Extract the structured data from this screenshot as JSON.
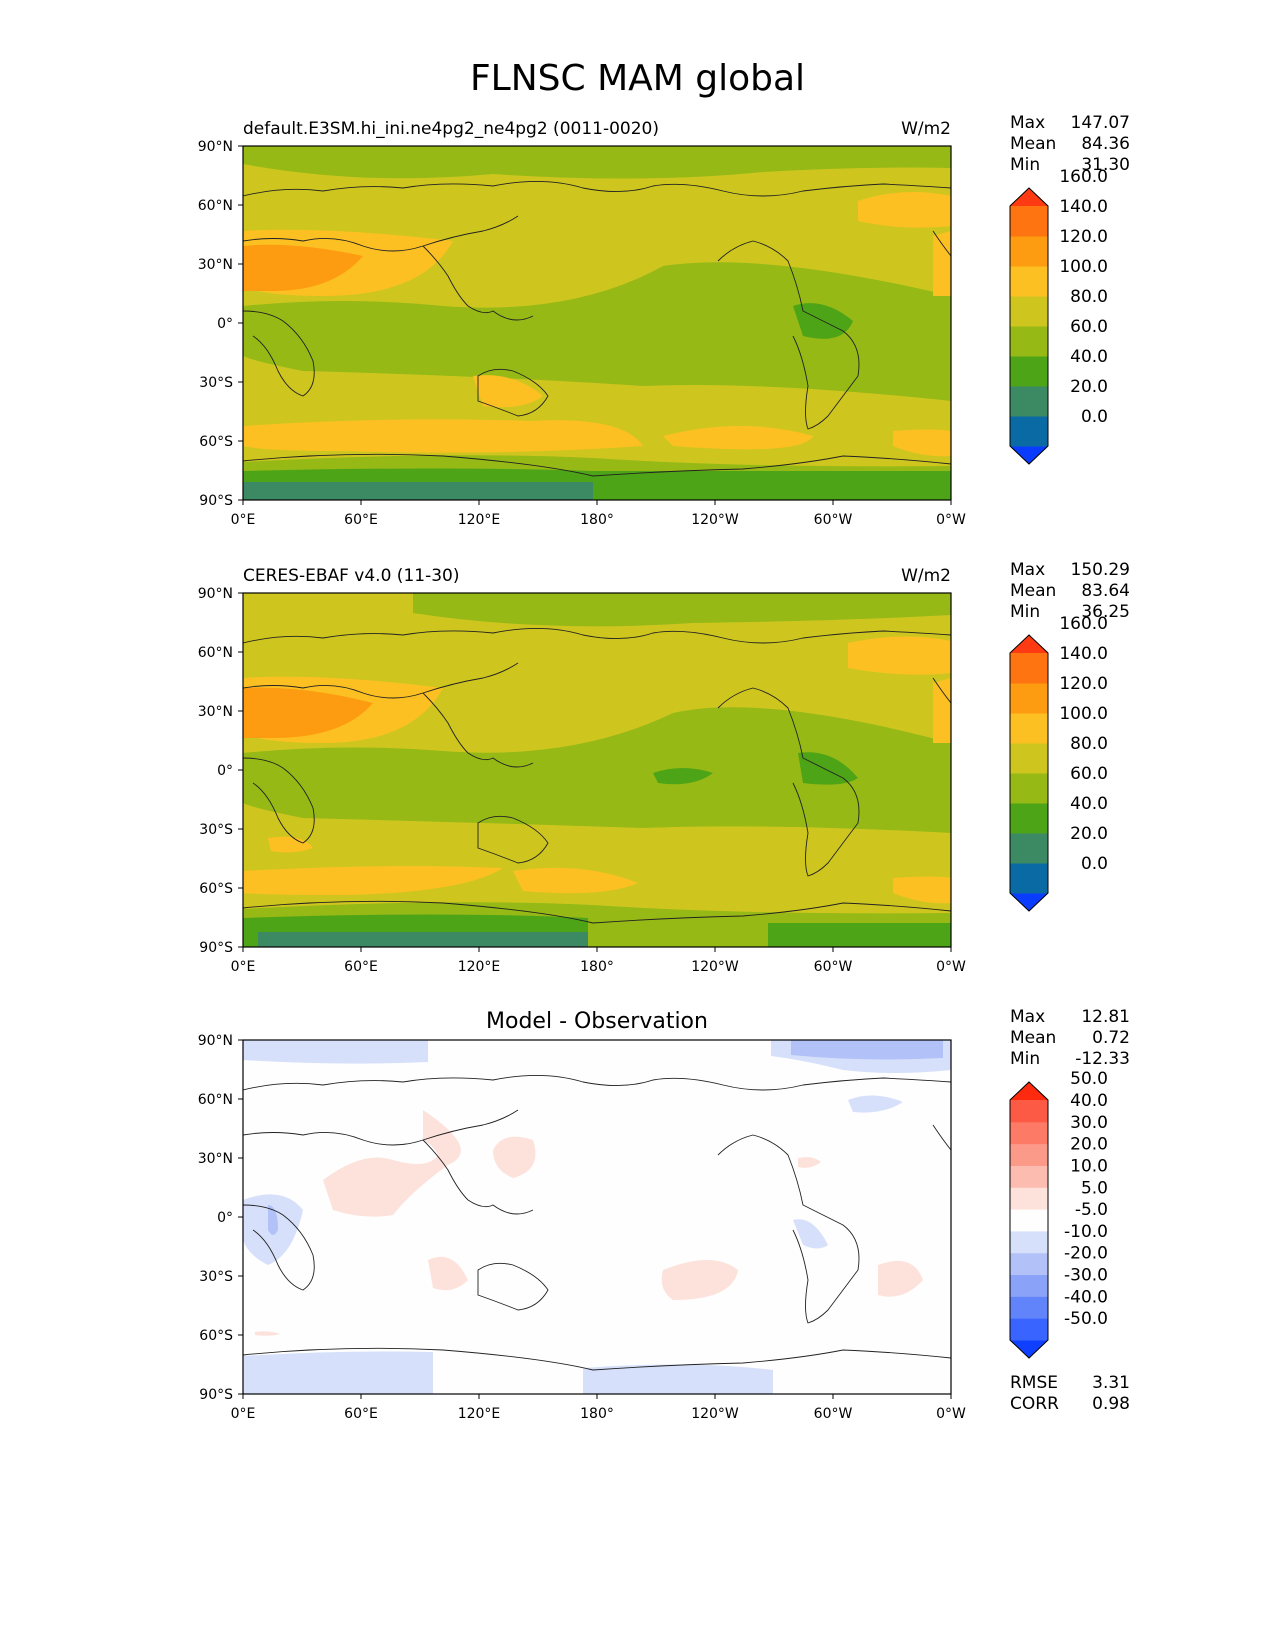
{
  "figure": {
    "title": "FLNSC MAM global"
  },
  "panels": [
    {
      "name": "model",
      "left_label": "default.E3SM.hi_ini.ne4pg2_ne4pg2 (0011-0020)",
      "right_label": "W/m2",
      "center_title": "",
      "stats": [
        {
          "label": "Max",
          "value": "147.07"
        },
        {
          "label": "Mean",
          "value": "84.36"
        },
        {
          "label": "Min",
          "value": "31.30"
        }
      ],
      "colorbar": {
        "colors": [
          "#0a3cff",
          "#0a6aa4",
          "#3b8a64",
          "#4ea417",
          "#96b916",
          "#cec61f",
          "#fdc022",
          "#fd9c10",
          "#fd7411",
          "#fd3a12"
        ],
        "labels": [
          "0.0",
          "20.0",
          "40.0",
          "60.0",
          "80.0",
          "100.0",
          "120.0",
          "140.0",
          "160.0"
        ]
      },
      "extra_stats": []
    },
    {
      "name": "observation",
      "left_label": "CERES-EBAF v4.0 (11-30)",
      "right_label": "W/m2",
      "center_title": "",
      "stats": [
        {
          "label": "Max",
          "value": "150.29"
        },
        {
          "label": "Mean",
          "value": "83.64"
        },
        {
          "label": "Min",
          "value": "36.25"
        }
      ],
      "colorbar": {
        "colors": [
          "#0a3cff",
          "#0a6aa4",
          "#3b8a64",
          "#4ea417",
          "#96b916",
          "#cec61f",
          "#fdc022",
          "#fd9c10",
          "#fd7411",
          "#fd3a12"
        ],
        "labels": [
          "0.0",
          "20.0",
          "40.0",
          "60.0",
          "80.0",
          "100.0",
          "120.0",
          "140.0",
          "160.0"
        ]
      },
      "extra_stats": []
    },
    {
      "name": "difference",
      "left_label": "",
      "right_label": "",
      "center_title": "Model - Observation",
      "stats": [
        {
          "label": "Max",
          "value": "12.81"
        },
        {
          "label": "Mean",
          "value": "0.72"
        },
        {
          "label": "Min",
          "value": "-12.33"
        }
      ],
      "colorbar": {
        "colors": [
          "#1040ff",
          "#3a64ff",
          "#6284fa",
          "#8aa2f8",
          "#b2c2f8",
          "#d6e0fa",
          "#fefefe",
          "#fde2dc",
          "#fcbcb0",
          "#fc9a8a",
          "#fc7a66",
          "#fc5a44",
          "#fd2a10"
        ],
        "labels": [
          "-50.0",
          "-40.0",
          "-30.0",
          "-20.0",
          "-10.0",
          "-5.0",
          "5.0",
          "10.0",
          "20.0",
          "30.0",
          "40.0",
          "50.0"
        ]
      },
      "extra_stats": [
        {
          "label": "RMSE",
          "value": "3.31"
        },
        {
          "label": "CORR",
          "value": "0.98"
        }
      ]
    }
  ],
  "axes": {
    "lat_ticks": [
      "90°N",
      "60°N",
      "30°N",
      "0°",
      "30°S",
      "60°S",
      "90°S"
    ],
    "lon_ticks": [
      "0°E",
      "60°E",
      "120°E",
      "180°",
      "120°W",
      "60°W",
      "0°W"
    ]
  }
}
